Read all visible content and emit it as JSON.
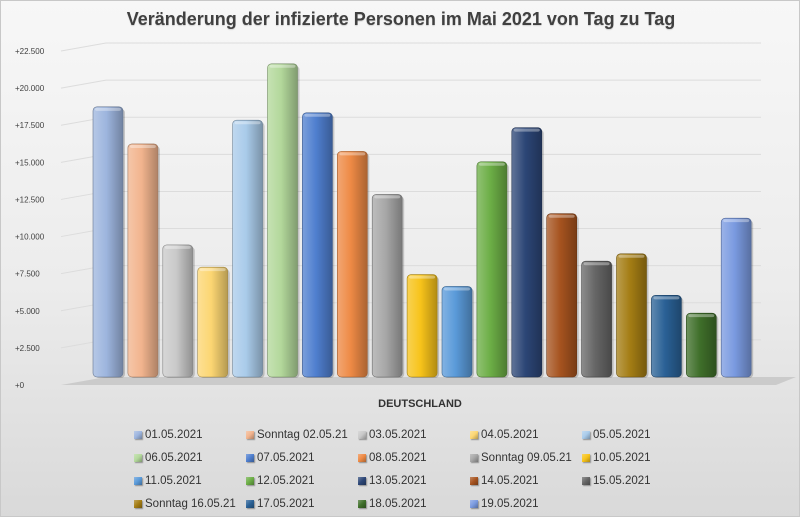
{
  "chart_data": {
    "type": "bar",
    "title": "Veränderung der infizierte Personen im Mai 2021 von Tag zu Tag",
    "categories": [
      "DEUTSCHLAND"
    ],
    "xlabel": "",
    "ylabel": "",
    "ylim": [
      0,
      22500
    ],
    "y_ticks": [
      "+0",
      "+2.500",
      "+5.000",
      "+7.500",
      "+10.000",
      "+12.500",
      "+15.000",
      "+17.500",
      "+20.000",
      "+22.500"
    ],
    "y_tick_values": [
      0,
      2500,
      5000,
      7500,
      10000,
      12500,
      15000,
      17500,
      20000,
      22500
    ],
    "grid": true,
    "legend_position": "bottom",
    "series": [
      {
        "name": "01.05.2021",
        "values": [
          18200
        ],
        "color": "#9db5de"
      },
      {
        "name": "Sonntag 02.05.21",
        "values": [
          15700
        ],
        "color": "#f2b48e"
      },
      {
        "name": "03.05.2021",
        "values": [
          8900
        ],
        "color": "#c9c9c9"
      },
      {
        "name": "04.05.2021",
        "values": [
          7400
        ],
        "color": "#fcd672"
      },
      {
        "name": "05.05.2021",
        "values": [
          17300
        ],
        "color": "#a9cbea"
      },
      {
        "name": "06.05.2021",
        "values": [
          21100
        ],
        "color": "#b3d89b"
      },
      {
        "name": "07.05.2021",
        "values": [
          17800
        ],
        "color": "#4f7fcf"
      },
      {
        "name": "08.05.2021",
        "values": [
          15200
        ],
        "color": "#ee8a45"
      },
      {
        "name": "Sonntag 09.05.21",
        "values": [
          12300
        ],
        "color": "#a7a7a7"
      },
      {
        "name": "10.05.2021",
        "values": [
          6900
        ],
        "color": "#f7c31a"
      },
      {
        "name": "11.05.2021",
        "values": [
          6100
        ],
        "color": "#5a9ad9"
      },
      {
        "name": "12.05.2021",
        "values": [
          14500
        ],
        "color": "#6cae46"
      },
      {
        "name": "13.05.2021",
        "values": [
          16800
        ],
        "color": "#2c4676"
      },
      {
        "name": "14.05.2021",
        "values": [
          11000
        ],
        "color": "#a6531f"
      },
      {
        "name": "15.05.2021",
        "values": [
          7800
        ],
        "color": "#666666"
      },
      {
        "name": "Sonntag 16.05.21",
        "values": [
          8300
        ],
        "color": "#a47d14"
      },
      {
        "name": "17.05.2021",
        "values": [
          5500
        ],
        "color": "#2a6196"
      },
      {
        "name": "18.05.2021",
        "values": [
          4300
        ],
        "color": "#3f6f2a"
      },
      {
        "name": "19.05.2021",
        "values": [
          10700
        ],
        "color": "#7a9ae0"
      }
    ]
  }
}
